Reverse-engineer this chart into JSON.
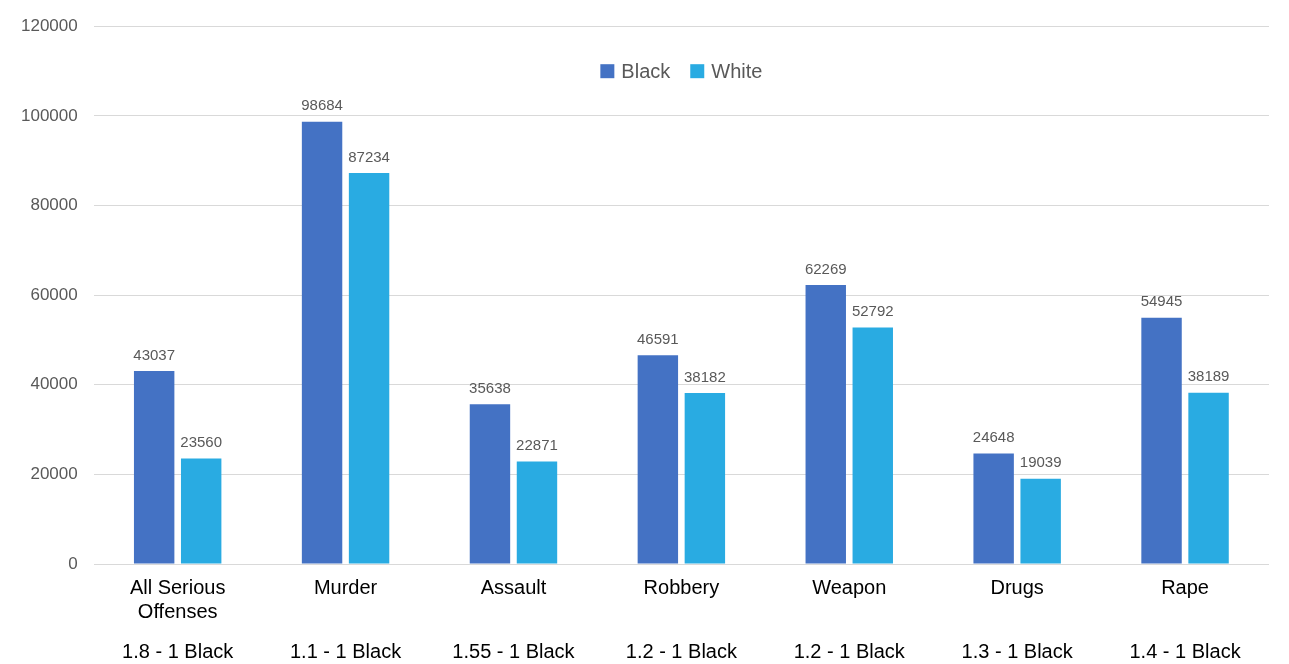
{
  "chart_data": {
    "type": "bar",
    "categories": [
      "All Serious Offenses",
      "Murder",
      "Assault",
      "Robbery",
      "Weapon",
      "Drugs",
      "Rape"
    ],
    "series": [
      {
        "name": "Black",
        "color": "#4472c4",
        "values": [
          43037,
          98684,
          35638,
          46591,
          62269,
          24648,
          54945
        ]
      },
      {
        "name": "White",
        "color": "#29abe2",
        "values": [
          23560,
          87234,
          22871,
          38182,
          52792,
          19039,
          38189
        ]
      }
    ],
    "ylim": [
      0,
      120000
    ],
    "yticks": [
      0,
      20000,
      40000,
      60000,
      80000,
      100000,
      120000
    ],
    "grid": "y",
    "legend": "top",
    "data_labels": true,
    "annotations": [
      "1.8 - 1 Black",
      "1.1 - 1 Black",
      "1.55 - 1 Black",
      "1.2 - 1 Black",
      "1.2 - 1 Black",
      "1.3 - 1 Black",
      "1.4 - 1 Black"
    ]
  }
}
